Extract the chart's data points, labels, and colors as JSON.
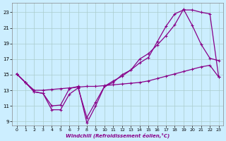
{
  "xlabel": "Windchill (Refroidissement éolien,°C)",
  "bg_color": "#cceeff",
  "grid_color": "#aacccc",
  "line_color": "#880088",
  "xlim": [
    -0.5,
    23.5
  ],
  "ylim": [
    8.5,
    24.2
  ],
  "xticks": [
    0,
    1,
    2,
    3,
    4,
    5,
    6,
    7,
    8,
    9,
    10,
    11,
    12,
    13,
    14,
    15,
    16,
    17,
    18,
    19,
    20,
    21,
    22,
    23
  ],
  "yticks": [
    9,
    11,
    13,
    15,
    17,
    19,
    21,
    23
  ],
  "line1_x": [
    0,
    1,
    2,
    3,
    4,
    5,
    6,
    7,
    8,
    9,
    10,
    11,
    12,
    13,
    14,
    15,
    16,
    17,
    18,
    19,
    20,
    21,
    22,
    23
  ],
  "line1_y": [
    15.1,
    14.0,
    12.8,
    12.6,
    11.0,
    11.1,
    13.2,
    13.5,
    8.8,
    11.0,
    13.5,
    14.0,
    15.0,
    15.6,
    17.0,
    17.7,
    18.8,
    20.0,
    21.4,
    23.4,
    21.3,
    18.9,
    17.1,
    16.8
  ],
  "line2_x": [
    0,
    1,
    2,
    3,
    4,
    5,
    6,
    7,
    8,
    9,
    10,
    11,
    12,
    13,
    14,
    15,
    16,
    17,
    18,
    19,
    20,
    21,
    22,
    23
  ],
  "line2_y": [
    15.1,
    14.0,
    12.8,
    12.6,
    10.5,
    10.5,
    12.5,
    13.3,
    9.5,
    11.5,
    13.5,
    14.2,
    14.8,
    15.6,
    16.5,
    17.2,
    19.2,
    21.2,
    22.8,
    23.3,
    23.3,
    23.0,
    22.8,
    14.7
  ],
  "line3_x": [
    0,
    1,
    2,
    3,
    4,
    5,
    6,
    7,
    8,
    9,
    10,
    11,
    12,
    13,
    14,
    15,
    16,
    17,
    18,
    19,
    20,
    21,
    22,
    23
  ],
  "line3_y": [
    15.1,
    14.0,
    13.0,
    13.0,
    13.1,
    13.2,
    13.3,
    13.4,
    13.5,
    13.5,
    13.6,
    13.7,
    13.8,
    13.9,
    14.0,
    14.2,
    14.5,
    14.8,
    15.1,
    15.4,
    15.7,
    16.0,
    16.2,
    14.7
  ]
}
